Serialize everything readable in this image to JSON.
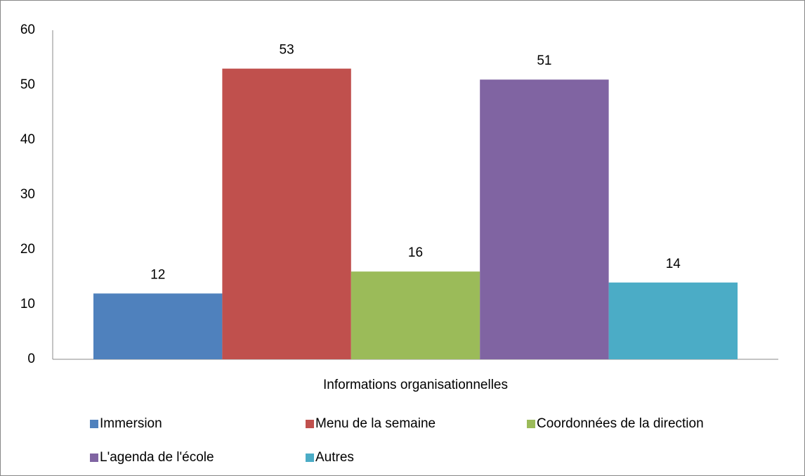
{
  "chart_data": {
    "type": "bar",
    "categories": [
      "Informations organisationnelles"
    ],
    "series": [
      {
        "name": "Immersion",
        "color": "#4f81bd",
        "values": [
          12
        ]
      },
      {
        "name": "Menu de la semaine",
        "color": "#c0504d",
        "values": [
          53
        ]
      },
      {
        "name": "Coordonnées de la direction",
        "color": "#9bbb59",
        "values": [
          16
        ]
      },
      {
        "name": "L'agenda de l'école",
        "color": "#8064a2",
        "values": [
          51
        ]
      },
      {
        "name": "Autres",
        "color": "#4bacc6",
        "values": [
          14
        ]
      }
    ],
    "ylim": [
      0,
      60
    ],
    "yticks": [
      0,
      10,
      20,
      30,
      40,
      50,
      60
    ],
    "grid": false,
    "legend": "bottom"
  }
}
